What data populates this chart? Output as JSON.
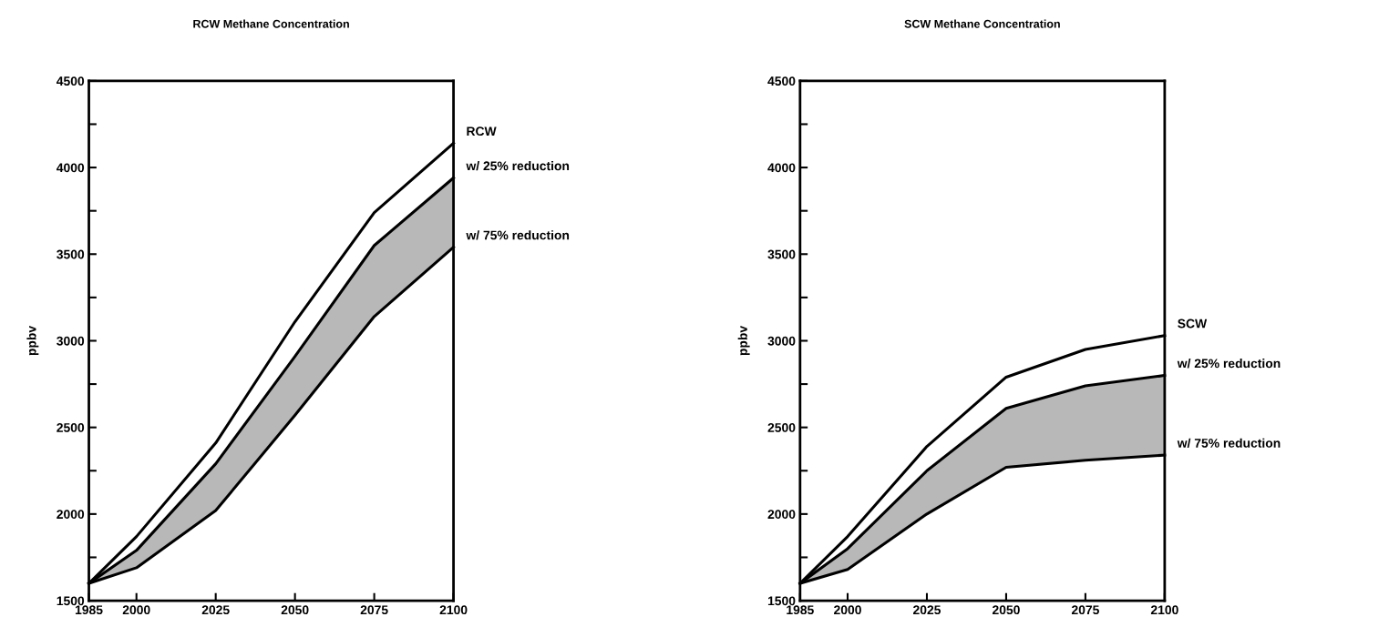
{
  "chart_data": [
    {
      "type": "line",
      "title": "RCW Methane Concentration",
      "ylabel": "ppbv",
      "x": [
        1985,
        2000,
        2025,
        2050,
        2075,
        2100
      ],
      "series": [
        {
          "name": "RCW",
          "color": "#000000",
          "values": [
            1600,
            1870,
            2410,
            3110,
            3740,
            4140
          ]
        },
        {
          "name": "w/ 25% reduction",
          "color": "#000000",
          "values": [
            1600,
            1790,
            2290,
            2910,
            3550,
            3940
          ],
          "lower": [
            1600,
            1690,
            2020,
            2570,
            3140,
            3540
          ],
          "upper": [
            1600,
            1790,
            2290,
            2910,
            3550,
            3940
          ]
        },
        {
          "name": "w/ 75% reduction",
          "color": "#000000",
          "values": [
            1600,
            1690,
            2020,
            2570,
            3140,
            3540
          ]
        }
      ],
      "xlim": [
        1985,
        2100
      ],
      "xticks": [
        1985,
        2000,
        2025,
        2050,
        2075,
        2100
      ],
      "ylim": [
        1500,
        4500
      ],
      "yticks": [
        1500,
        {
          "value": 1750,
          "label": null
        },
        2000,
        {
          "value": 2250,
          "label": null
        },
        2500,
        {
          "value": 2750,
          "label": null
        },
        3000,
        {
          "value": 3250,
          "label": null
        },
        3500,
        {
          "value": 3750,
          "label": null
        },
        4000,
        {
          "value": 4250,
          "label": null
        },
        4500
      ],
      "grid": false,
      "legend": false
    },
    {
      "type": "line",
      "title": "SCW Methane Concentration",
      "ylabel": "ppbv",
      "x": [
        1985,
        2000,
        2025,
        2050,
        2075,
        2100
      ],
      "series": [
        {
          "name": "SCW",
          "color": "#000000",
          "values": [
            1600,
            1870,
            2390,
            2790,
            2950,
            3030
          ]
        },
        {
          "name": "w/ 25% reduction",
          "color": "#000000",
          "values": [
            1600,
            1800,
            2250,
            2610,
            2740,
            2800
          ],
          "lower": [
            1600,
            1680,
            2000,
            2270,
            2310,
            2340
          ],
          "upper": [
            1600,
            1800,
            2250,
            2610,
            2740,
            2800
          ]
        },
        {
          "name": "w/ 75% reduction",
          "color": "#000000",
          "values": [
            1600,
            1680,
            2000,
            2270,
            2310,
            2340
          ]
        }
      ],
      "xlim": [
        1985,
        2100
      ],
      "xticks": [
        1985,
        2000,
        2025,
        2050,
        2075,
        2100
      ],
      "ylim": [
        1500,
        4500
      ],
      "yticks": [
        1500,
        {
          "value": 1750,
          "label": null
        },
        2000,
        {
          "value": 2250,
          "label": null
        },
        2500,
        {
          "value": 2750,
          "label": null
        },
        3000,
        {
          "value": 3250,
          "label": null
        },
        3500,
        {
          "value": 3750,
          "label": null
        },
        4000,
        {
          "value": 4250,
          "label": null
        },
        4500
      ],
      "grid": false,
      "legend": false
    }
  ]
}
